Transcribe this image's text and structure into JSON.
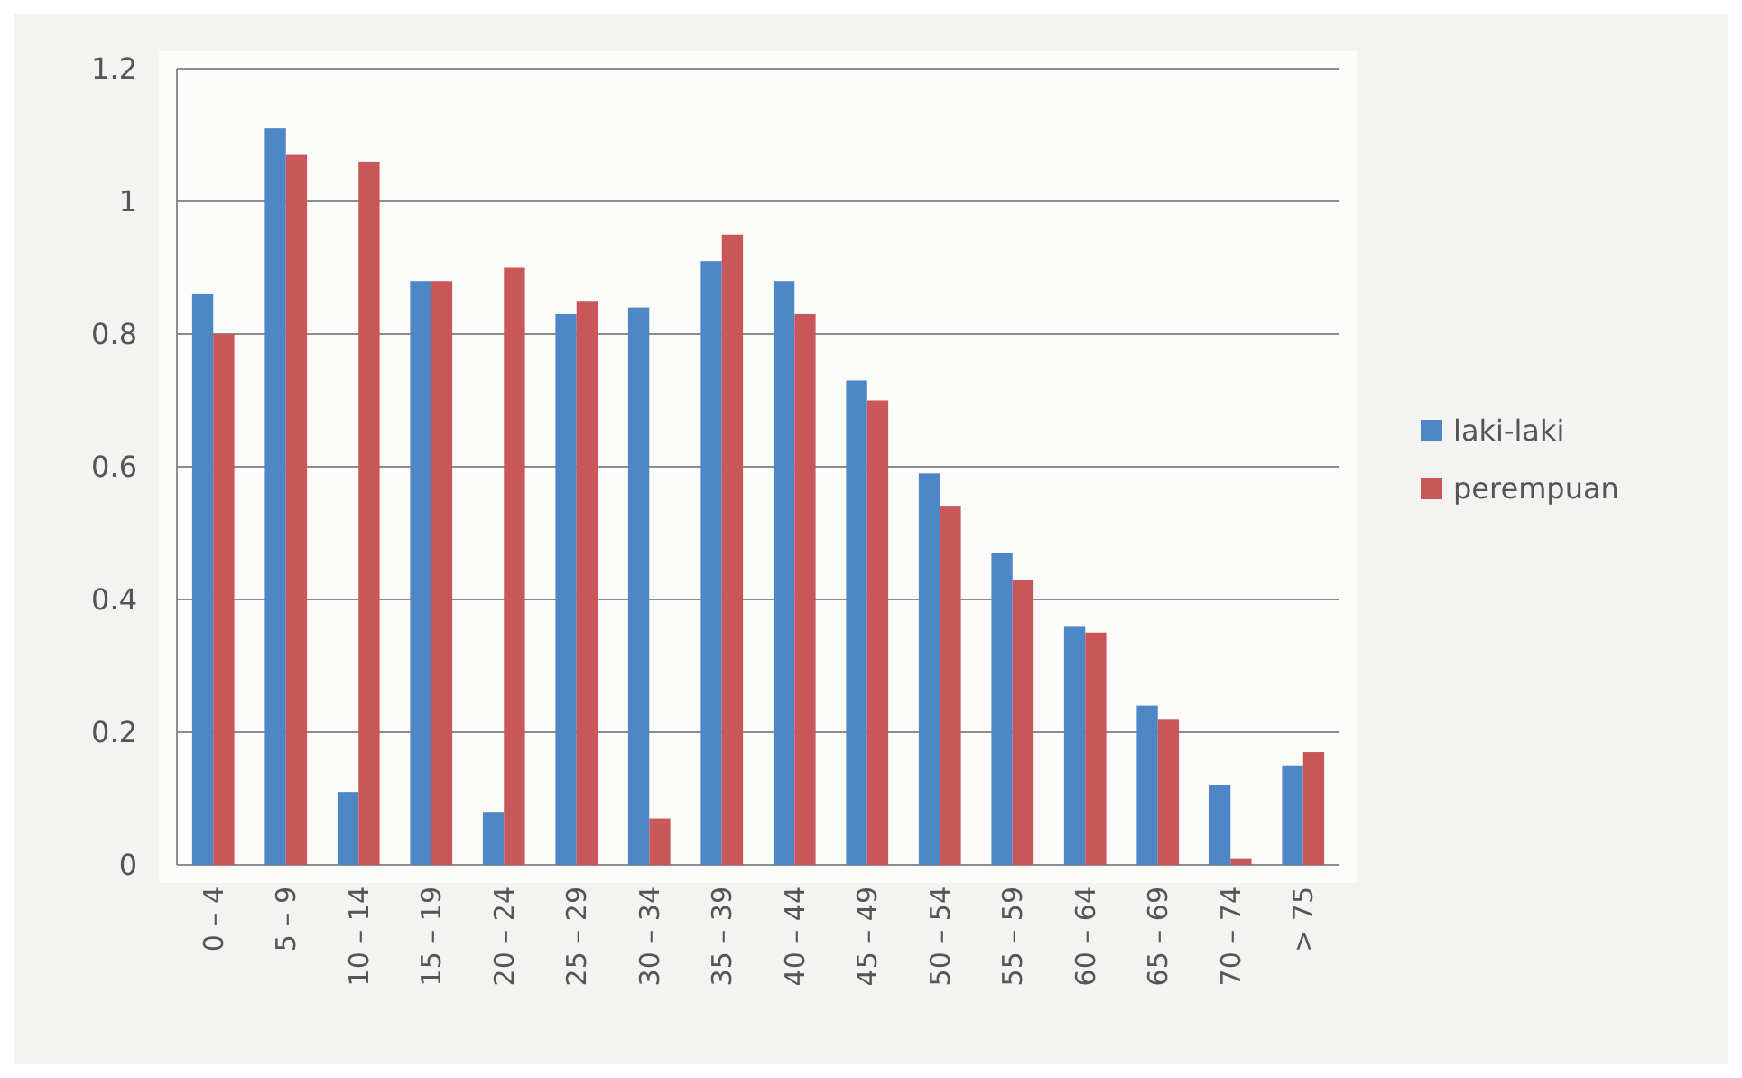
{
  "chart_data": {
    "type": "bar",
    "categories": [
      "0 – 4",
      "5 – 9",
      "10 – 14",
      "15 – 19",
      "20 – 24",
      "25 – 29",
      "30 – 34",
      "35 – 39",
      "40 – 44",
      "45 – 49",
      "50 – 54",
      "55 – 59",
      "60 – 64",
      "65 – 69",
      "70 – 74",
      "> 75"
    ],
    "series": [
      {
        "name": "laki-laki",
        "color": "#4f86c6",
        "values": [
          0.86,
          1.11,
          0.11,
          0.88,
          0.08,
          0.83,
          0.84,
          0.91,
          0.88,
          0.73,
          0.59,
          0.47,
          0.36,
          0.24,
          0.12,
          0.15
        ]
      },
      {
        "name": "perempuan",
        "color": "#c9575a",
        "values": [
          0.8,
          1.07,
          1.06,
          0.88,
          0.9,
          0.85,
          0.07,
          0.95,
          0.83,
          0.7,
          0.54,
          0.43,
          0.35,
          0.22,
          0.01,
          0.17
        ]
      }
    ],
    "ylim": [
      0,
      1.2
    ],
    "yticks": [
      0,
      0.2,
      0.4,
      0.6,
      0.8,
      1,
      1.2
    ],
    "grid": "y",
    "legend": "right"
  }
}
